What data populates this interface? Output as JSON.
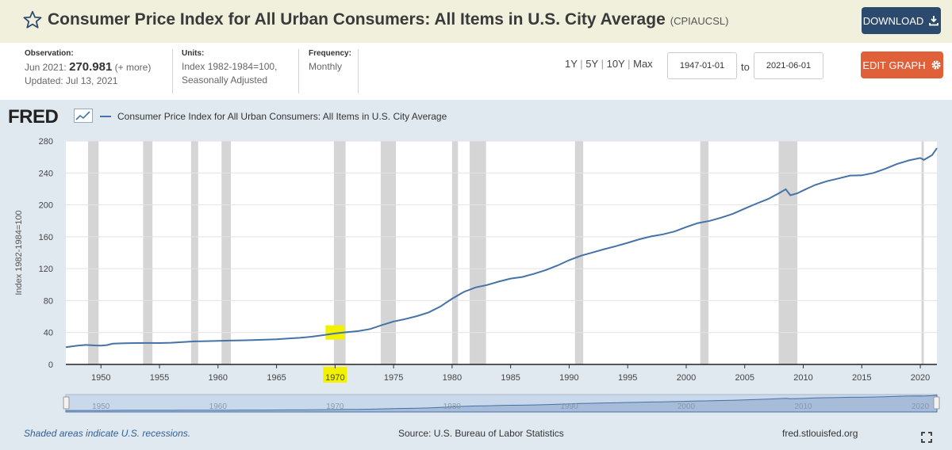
{
  "header": {
    "title": "Consumer Price Index for All Urban Consumers: All Items in U.S. City Average",
    "series_id": "(CPIAUCSL)",
    "download_label": "DOWNLOAD"
  },
  "info": {
    "observation_label": "Observation:",
    "observation_date": "Jun 2021:",
    "observation_value": "270.981",
    "observation_more": "(+ more)",
    "updated": "Updated: Jul 13, 2021",
    "units_label": "Units:",
    "units_line1": "Index 1982-1984=100,",
    "units_line2": "Seasonally Adjusted",
    "frequency_label": "Frequency:",
    "frequency_value": "Monthly"
  },
  "range": {
    "links": [
      "1Y",
      "5Y",
      "10Y",
      "Max"
    ],
    "start": "1947-01-01",
    "to_label": "to",
    "end": "2021-06-01"
  },
  "edit_label": "EDIT GRAPH",
  "fred_logo": "FRED",
  "footer": {
    "recession_note": "Shaded areas indicate U.S. recessions.",
    "source": "Source: U.S. Bureau of Labor Statistics",
    "site": "fred.stlouisfed.org"
  },
  "colors": {
    "line": "#4572a7",
    "recession": "#d5d5d5",
    "highlight": "#f2f200",
    "download_btn": "#2c4a6e",
    "edit_btn": "#e0603a"
  },
  "chart_data": {
    "type": "line",
    "title": "",
    "legend": "Consumer Price Index for All Urban Consumers: All Items in U.S. City Average",
    "ylabel": "Index 1982-1984=100",
    "xlim": [
      1947.0,
      2021.42
    ],
    "ylim": [
      0,
      280
    ],
    "y_ticks": [
      0,
      40,
      80,
      120,
      160,
      200,
      240,
      280
    ],
    "x_ticks": [
      1950,
      1955,
      1960,
      1965,
      1970,
      1975,
      1980,
      1985,
      1990,
      1995,
      2000,
      2005,
      2010,
      2015,
      2020
    ],
    "navigator_ticks": [
      1950,
      1960,
      1970,
      1980,
      1990,
      2000,
      2010,
      2020
    ],
    "grid": true,
    "highlight_x": 1970,
    "recessions": [
      [
        1948.9,
        1949.8
      ],
      [
        1953.6,
        1954.4
      ],
      [
        1957.7,
        1958.3
      ],
      [
        1960.3,
        1961.1
      ],
      [
        1969.9,
        1970.9
      ],
      [
        1973.9,
        1975.2
      ],
      [
        1980.0,
        1980.5
      ],
      [
        1981.5,
        1982.9
      ],
      [
        1990.5,
        1991.2
      ],
      [
        2001.2,
        2001.9
      ],
      [
        2007.9,
        2009.5
      ],
      [
        2020.1,
        2020.3
      ]
    ],
    "series": [
      {
        "name": "Consumer Price Index for All Urban Consumers: All Items in U.S. City Average",
        "points": [
          [
            1947.0,
            21.5
          ],
          [
            1948.0,
            23.6
          ],
          [
            1948.7,
            24.4
          ],
          [
            1949.5,
            23.8
          ],
          [
            1950.0,
            23.6
          ],
          [
            1950.5,
            24.2
          ],
          [
            1951.0,
            26.0
          ],
          [
            1952.0,
            26.5
          ],
          [
            1953.0,
            26.8
          ],
          [
            1954.0,
            26.9
          ],
          [
            1955.0,
            26.8
          ],
          [
            1956.0,
            27.2
          ],
          [
            1957.0,
            28.1
          ],
          [
            1958.0,
            28.9
          ],
          [
            1959.0,
            29.2
          ],
          [
            1960.0,
            29.6
          ],
          [
            1961.0,
            29.9
          ],
          [
            1962.0,
            30.2
          ],
          [
            1963.0,
            30.6
          ],
          [
            1964.0,
            31.0
          ],
          [
            1965.0,
            31.5
          ],
          [
            1966.0,
            32.5
          ],
          [
            1967.0,
            33.4
          ],
          [
            1968.0,
            34.8
          ],
          [
            1969.0,
            36.7
          ],
          [
            1970.0,
            38.8
          ],
          [
            1971.0,
            40.5
          ],
          [
            1972.0,
            41.8
          ],
          [
            1973.0,
            44.4
          ],
          [
            1974.0,
            49.3
          ],
          [
            1975.0,
            53.8
          ],
          [
            1976.0,
            56.9
          ],
          [
            1977.0,
            60.6
          ],
          [
            1978.0,
            65.2
          ],
          [
            1979.0,
            72.6
          ],
          [
            1980.0,
            82.4
          ],
          [
            1981.0,
            90.9
          ],
          [
            1982.0,
            96.5
          ],
          [
            1983.0,
            99.6
          ],
          [
            1984.0,
            103.9
          ],
          [
            1985.0,
            107.6
          ],
          [
            1986.0,
            109.6
          ],
          [
            1987.0,
            113.6
          ],
          [
            1988.0,
            118.3
          ],
          [
            1989.0,
            124.0
          ],
          [
            1990.0,
            130.7
          ],
          [
            1991.0,
            136.2
          ],
          [
            1992.0,
            140.3
          ],
          [
            1993.0,
            144.5
          ],
          [
            1994.0,
            148.2
          ],
          [
            1995.0,
            152.4
          ],
          [
            1996.0,
            156.9
          ],
          [
            1997.0,
            160.5
          ],
          [
            1998.0,
            163.0
          ],
          [
            1999.0,
            166.6
          ],
          [
            2000.0,
            172.2
          ],
          [
            2001.0,
            177.1
          ],
          [
            2002.0,
            179.9
          ],
          [
            2003.0,
            184.0
          ],
          [
            2004.0,
            188.9
          ],
          [
            2005.0,
            195.3
          ],
          [
            2006.0,
            201.6
          ],
          [
            2007.0,
            207.3
          ],
          [
            2008.0,
            215.3
          ],
          [
            2008.5,
            219.5
          ],
          [
            2008.9,
            212.0
          ],
          [
            2009.5,
            214.5
          ],
          [
            2010.0,
            218.1
          ],
          [
            2011.0,
            224.9
          ],
          [
            2012.0,
            229.6
          ],
          [
            2013.0,
            233.0
          ],
          [
            2014.0,
            236.7
          ],
          [
            2015.0,
            237.0
          ],
          [
            2016.0,
            240.0
          ],
          [
            2017.0,
            245.1
          ],
          [
            2018.0,
            251.1
          ],
          [
            2019.0,
            255.7
          ],
          [
            2020.0,
            258.8
          ],
          [
            2020.3,
            256.4
          ],
          [
            2021.0,
            262.2
          ],
          [
            2021.42,
            270.981
          ]
        ]
      }
    ]
  }
}
